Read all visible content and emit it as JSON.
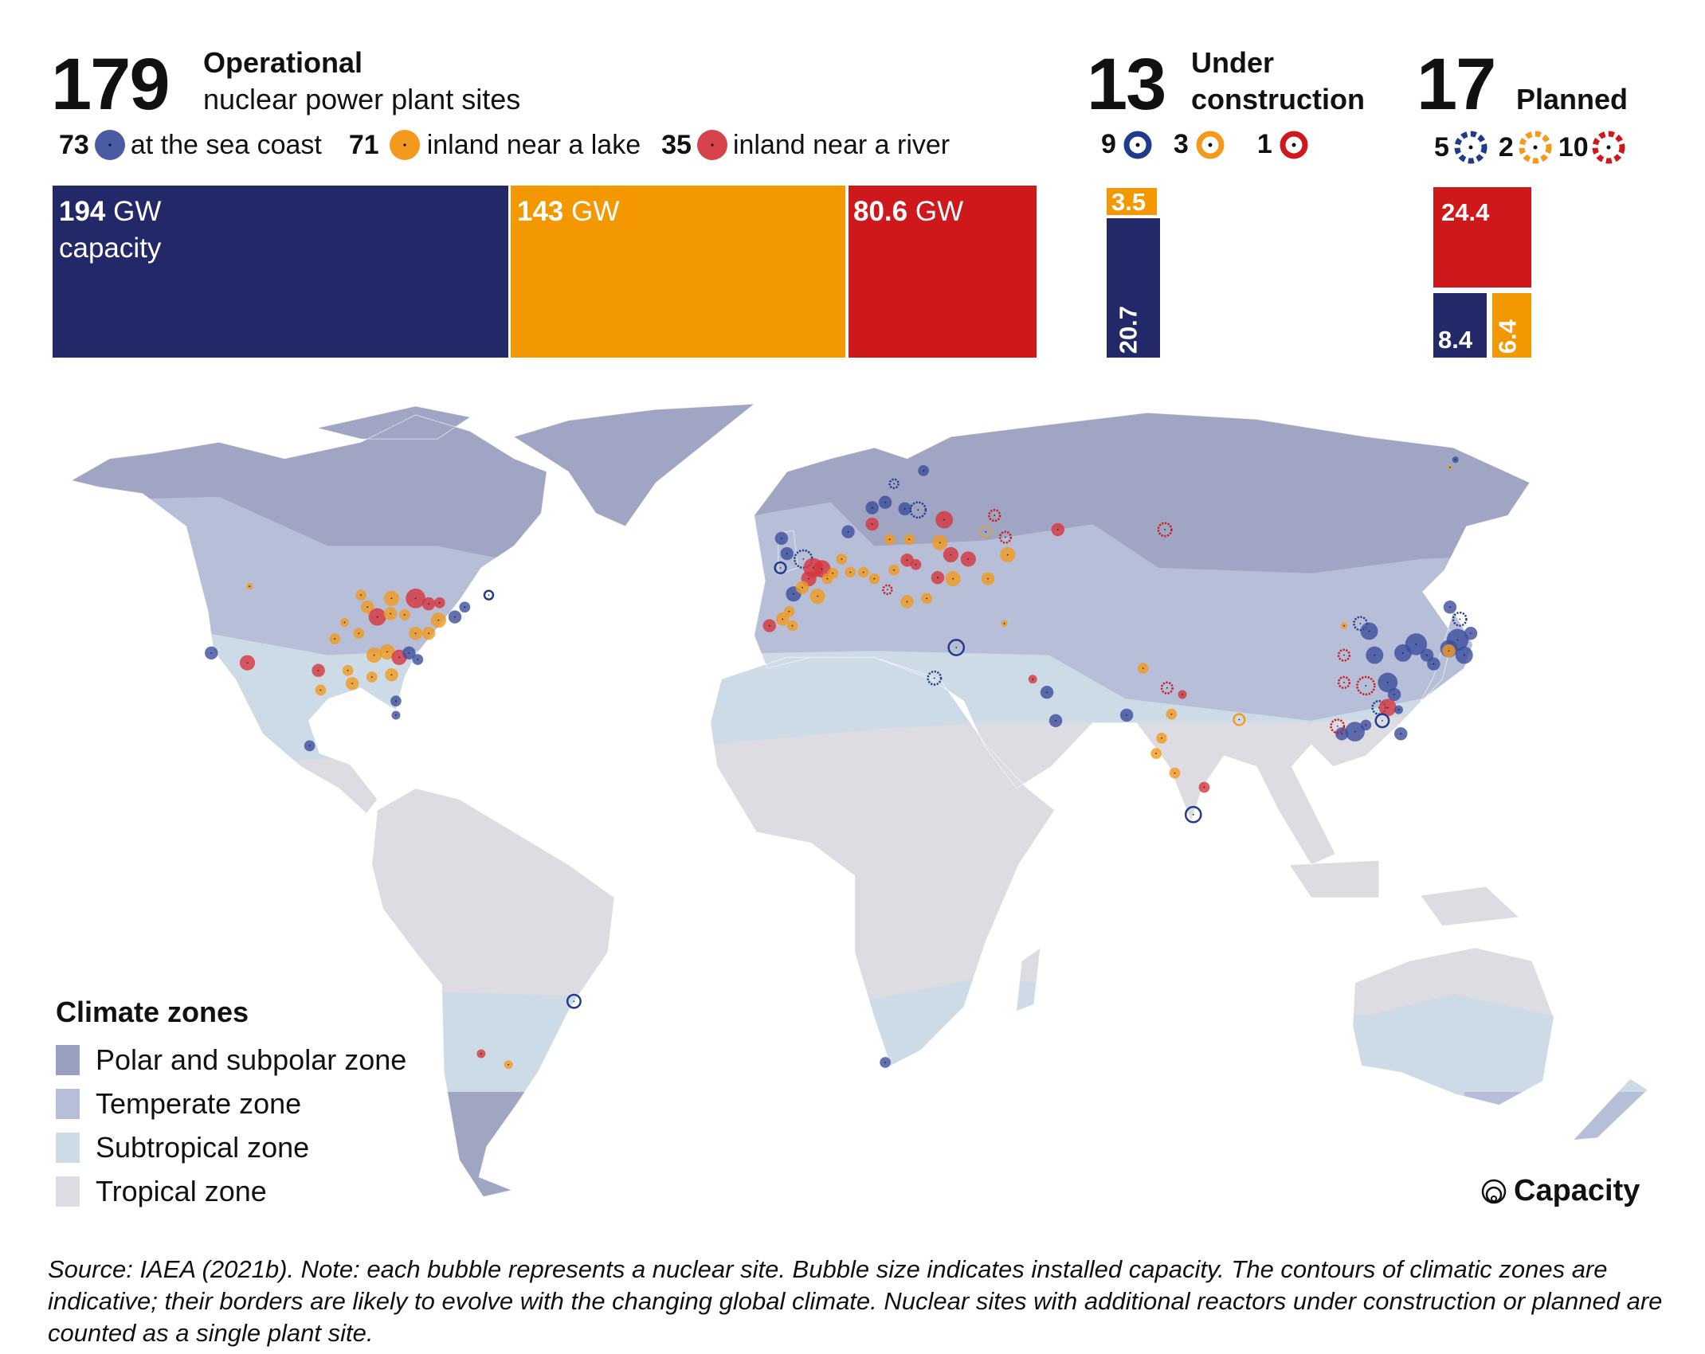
{
  "operational": {
    "count": "179",
    "title": "Operational",
    "subtitle": "nuclear power plant sites",
    "legend": [
      {
        "count": "73",
        "label": "at the sea coast",
        "color": "#4a5aa3"
      },
      {
        "count": "71",
        "label": "inland near a lake",
        "color": "#f39a1e"
      },
      {
        "count": "35",
        "label": "inland near a river",
        "color": "#d6434a"
      }
    ]
  },
  "under_construction": {
    "count": "13",
    "title_line1": "Under",
    "title_line2": "construction",
    "legend": [
      {
        "count": "9",
        "color": "#213b8c"
      },
      {
        "count": "3",
        "color": "#f39a1e"
      },
      {
        "count": "1",
        "color": "#cf181c"
      }
    ]
  },
  "planned": {
    "count": "17",
    "title": "Planned",
    "legend": [
      {
        "count": "5",
        "color": "#213b8c"
      },
      {
        "count": "2",
        "color": "#f39a1e"
      },
      {
        "count": "10",
        "color": "#cf181c"
      }
    ]
  },
  "chart_data": [
    {
      "type": "bar",
      "title": "Operational capacity",
      "unit": "GW",
      "categories": [
        "at the sea coast",
        "inland near a lake",
        "inland near a river"
      ],
      "values": [
        194,
        143,
        80.6
      ],
      "labels": [
        {
          "value": "194",
          "unit": " GW",
          "extra": "capacity"
        },
        {
          "value": "143",
          "unit": " GW"
        },
        {
          "value": "80.6",
          "unit": " GW"
        }
      ],
      "colors": [
        "#222868",
        "#f39800",
        "#cf181c"
      ]
    },
    {
      "type": "bar",
      "title": "Under construction capacity (GW)",
      "categories": [
        "at the sea coast",
        "inland near a lake"
      ],
      "values": [
        20.7,
        3.5
      ],
      "labels": [
        "20.7",
        "3.5"
      ]
    },
    {
      "type": "bar",
      "title": "Planned capacity (GW)",
      "categories": [
        "inland near a river",
        "at the sea coast",
        "inland near a lake"
      ],
      "values": [
        24.4,
        8.4,
        6.4
      ],
      "labels": [
        "24.4",
        "8.4",
        "6.4"
      ]
    }
  ],
  "climate_legend": {
    "title": "Climate zones",
    "zones": [
      {
        "label": "Polar and subpolar zone",
        "color": "#9aa1c0"
      },
      {
        "label": "Temperate zone",
        "color": "#b6bfd7"
      },
      {
        "label": "Subtropical zone",
        "color": "#cddbe7"
      },
      {
        "label": "Tropical zone",
        "color": "#dedce3"
      }
    ]
  },
  "capacity_legend": {
    "label": "Capacity",
    "icon": "nested-circles-icon"
  },
  "footnote": "Source: IAEA (2021b). Note: each bubble represents a nuclear site. Bubble size indicates installed capacity. The contours of climatic zones are indicative; their borders are likely to evolve with the changing global climate. Nuclear sites with additional reactors under construction or planned are counted as a single plant site."
}
